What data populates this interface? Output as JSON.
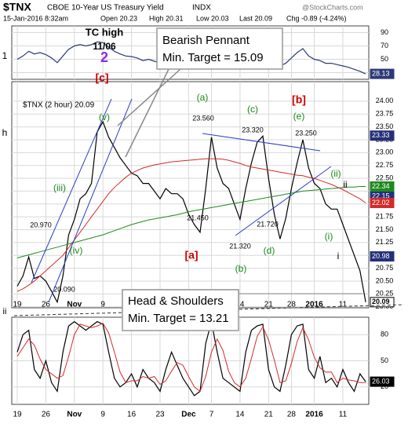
{
  "header": {
    "symbol": "$TNX",
    "name": "CBOE 10-Year US Treasury Yield",
    "exchange": "INDX",
    "datetime": "15-Jan-2016 8:32am",
    "open": "Open 20.23",
    "high": "High 20.31",
    "low": "Low 20.03",
    "last": "Last 20.09",
    "change": "Chg -0.89 (-4.24%)",
    "watermark": "@StockCharts.com"
  },
  "callouts": [
    {
      "title": "Bearish Pennant",
      "text": "Min. Target = 15.09"
    },
    {
      "title": "Head & Shoulders",
      "text": "Min. Target = 13.21"
    }
  ],
  "annotations": [
    "TC high",
    "11/06",
    "2",
    "[c]",
    "1",
    "(v)",
    "(iii)",
    "(iv)",
    "(a)",
    "(c)",
    "[b]",
    "(e)",
    "(ii)",
    "ii",
    "(i)",
    "i",
    "[a]",
    "(b)",
    "(d)",
    "h",
    "ii",
    "20.970",
    "20.090",
    "23.560",
    "21.450",
    "23.320",
    "21.320",
    "21.720",
    "23.250"
  ],
  "chart_data": [
    {
      "type": "line",
      "ylim": [
        20,
        100
      ],
      "yticks": [
        90,
        70,
        50,
        30
      ],
      "grid": true,
      "series": [
        {
          "color": "#2b3a78",
          "values": [
            50,
            55,
            62,
            58,
            60,
            57,
            52,
            45,
            55,
            65,
            70,
            72,
            70,
            72,
            76,
            75,
            68,
            62,
            58,
            55,
            54,
            52,
            48,
            50,
            47,
            45,
            50,
            48,
            48,
            46,
            42,
            40,
            38,
            52,
            65,
            55,
            50,
            48,
            45,
            42,
            52,
            60,
            65,
            66,
            55,
            45,
            40,
            44,
            52,
            60,
            66,
            55,
            50,
            48,
            44,
            44,
            42,
            40,
            38,
            35,
            32,
            28.13
          ]
        }
      ]
    },
    {
      "type": "line",
      "legend_text": "$TNX (2 hour) 20.09",
      "categories": [
        "19",
        null,
        null,
        null,
        null,
        "26",
        null,
        null,
        null,
        null,
        "Nov",
        null,
        null,
        null,
        null,
        "9",
        null,
        null,
        null,
        null,
        "16",
        null,
        null,
        null,
        null,
        "23",
        null,
        null,
        null,
        null,
        "Dec",
        null,
        null,
        null,
        "7",
        null,
        null,
        null,
        null,
        "14",
        null,
        null,
        null,
        null,
        "21",
        null,
        null,
        null,
        "28",
        null,
        null,
        null,
        "2016",
        null,
        null,
        null,
        null,
        "11",
        null,
        null,
        null,
        null
      ],
      "ylim": [
        19.98,
        24.38
      ],
      "yticks": [
        {
          "value": 20,
          "label": "20.00"
        },
        {
          "value": 20.25,
          "label": "20.25"
        },
        {
          "value": 20.5,
          "label": "20.50"
        },
        {
          "value": 20.75,
          "label": "20.75"
        },
        {
          "value": 21,
          "label": "21.00"
        },
        {
          "value": 21.25,
          "label": "21.25"
        },
        {
          "value": 21.5,
          "label": "21.50"
        },
        {
          "value": 21.75,
          "label": "21.75"
        },
        {
          "value": 22,
          "label": "22.00"
        },
        {
          "value": 22.25,
          "label": "22.25"
        },
        {
          "value": 22.5,
          "label": "22.50"
        },
        {
          "value": 22.75,
          "label": "22.75"
        },
        {
          "value": 23,
          "label": "23.00"
        },
        {
          "value": 23.25,
          "label": "23.25"
        },
        {
          "value": 23.5,
          "label": "23.50"
        },
        {
          "value": 23.75,
          "label": "23.75"
        },
        {
          "value": 24,
          "label": "24.00"
        }
      ],
      "grid": true,
      "series": [
        {
          "color": "#000000",
          "values": [
            20.4,
            20.6,
            20.97,
            20.55,
            20.6,
            20.5,
            20.3,
            20.09,
            20.6,
            21.4,
            21.7,
            22.1,
            22.2,
            22.4,
            23.4,
            23.6,
            23.3,
            23.1,
            22.9,
            22.75,
            22.6,
            22.55,
            22.4,
            22.4,
            22.25,
            22.1,
            22.3,
            22.2,
            22.2,
            22.1,
            21.8,
            21.6,
            21.45,
            22.3,
            23.3,
            22.7,
            22.4,
            22.3,
            22.0,
            21.7,
            22.3,
            22.8,
            23.2,
            23.32,
            22.5,
            21.8,
            21.32,
            21.72,
            22.3,
            22.8,
            23.25,
            22.7,
            22.4,
            22.3,
            22.0,
            21.9,
            21.9,
            21.6,
            21.3,
            21.0,
            20.7,
            20.09
          ]
        },
        {
          "color": "#d42a2a",
          "values": [
            20.3,
            20.35,
            20.42,
            20.5,
            20.6,
            20.7,
            20.8,
            20.9,
            21.0,
            21.15,
            21.3,
            21.45,
            21.6,
            21.75,
            21.9,
            22.05,
            22.2,
            22.32,
            22.42,
            22.52,
            22.6,
            22.65,
            22.7,
            22.73,
            22.76,
            22.78,
            22.8,
            22.82,
            22.83,
            22.84,
            22.85,
            22.86,
            22.87,
            22.88,
            22.88,
            22.88,
            22.87,
            22.85,
            22.82,
            22.79,
            22.75,
            22.72,
            22.7,
            22.68,
            22.66,
            22.64,
            22.62,
            22.6,
            22.58,
            22.56,
            22.55,
            22.52,
            22.5,
            22.46,
            22.42,
            22.38,
            22.33,
            22.28,
            22.22,
            22.16,
            22.1,
            22.02
          ]
        },
        {
          "color": "#1e8a1e",
          "values": [
            20.95,
            20.98,
            21.01,
            21.04,
            21.07,
            21.1,
            21.13,
            21.16,
            21.19,
            21.22,
            21.25,
            21.28,
            21.31,
            21.34,
            21.37,
            21.4,
            21.44,
            21.48,
            21.52,
            21.56,
            21.6,
            21.63,
            21.66,
            21.69,
            21.71,
            21.73,
            21.75,
            21.77,
            21.79,
            21.82,
            21.85,
            21.87,
            21.89,
            21.91,
            21.93,
            21.95,
            21.97,
            21.99,
            22.01,
            22.03,
            22.05,
            22.07,
            22.09,
            22.11,
            22.13,
            22.15,
            22.17,
            22.19,
            22.21,
            22.23,
            22.25,
            22.26,
            22.27,
            22.28,
            22.29,
            22.3,
            22.31,
            22.32,
            22.33,
            22.33,
            22.34,
            22.34
          ]
        }
      ],
      "last_value_tags": [
        {
          "value": 23.33,
          "color": "#23307a"
        },
        {
          "value": 22.15,
          "color": "#23307a"
        },
        {
          "value": 20.98,
          "color": "#23307a"
        }
      ]
    },
    {
      "type": "line",
      "ylim": [
        0,
        100
      ],
      "yticks": [
        80,
        50,
        20
      ],
      "grid": true,
      "series": [
        {
          "color": "#000000",
          "values": [
            60,
            80,
            85,
            40,
            30,
            50,
            25,
            15,
            60,
            90,
            95,
            90,
            85,
            90,
            95,
            92,
            60,
            30,
            20,
            25,
            35,
            20,
            40,
            30,
            25,
            15,
            40,
            60,
            45,
            30,
            20,
            10,
            15,
            70,
            95,
            60,
            30,
            25,
            20,
            15,
            60,
            85,
            90,
            92,
            40,
            20,
            15,
            45,
            80,
            90,
            92,
            40,
            30,
            55,
            25,
            30,
            20,
            40,
            25,
            15,
            35,
            26.03
          ]
        },
        {
          "color": "#d42a2a",
          "values": [
            55,
            65,
            75,
            68,
            52,
            40,
            35,
            30,
            33,
            55,
            80,
            92,
            90,
            88,
            90,
            93,
            82,
            60,
            37,
            25,
            27,
            27,
            32,
            30,
            32,
            23,
            27,
            38,
            48,
            45,
            32,
            20,
            15,
            32,
            60,
            75,
            62,
            38,
            25,
            20,
            30,
            53,
            78,
            89,
            74,
            51,
            25,
            27,
            47,
            72,
            88,
            74,
            54,
            42,
            37,
            37,
            25,
            30,
            28,
            27,
            25,
            25
          ]
        }
      ]
    }
  ]
}
